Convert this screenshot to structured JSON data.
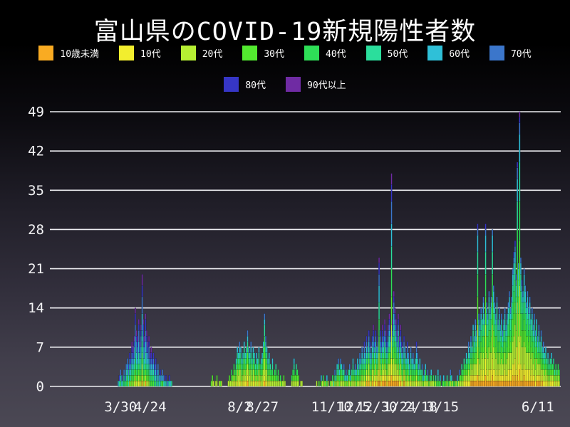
{
  "page": {
    "title": "富山県のCOVID-19新規陽性者数"
  },
  "chart_data": {
    "type": "bar",
    "stacked": true,
    "title": "富山県のCOVID-19新規陽性者数",
    "xlabel": "",
    "ylabel": "",
    "ylim": [
      0,
      49
    ],
    "y_ticks": [
      0,
      7,
      14,
      21,
      28,
      35,
      42,
      49
    ],
    "grid": "horizontal-white",
    "legend_position": "top, two rows",
    "x_axis_note": "categorical daily bars (one thin bar per reporting day), labels overlap",
    "x_ticks": [
      {
        "label": "3/30",
        "slot": 53
      },
      {
        "label": "4/24",
        "slot": 79
      },
      {
        "label": "8/2",
        "slot": 158
      },
      {
        "label": "8/27",
        "slot": 178
      },
      {
        "label": "11/10",
        "slot": 239
      },
      {
        "label": "12/5",
        "slot": 259
      },
      {
        "label": "12/30",
        "slot": 279
      },
      {
        "label": "1/24",
        "slot": 299
      },
      {
        "label": "2/18",
        "slot": 318
      },
      {
        "label": "3/15",
        "slot": 337
      },
      {
        "label": "6/11",
        "slot": 421
      }
    ],
    "age_groups": [
      {
        "name": "10歳未満",
        "color": "#F9AB22"
      },
      {
        "name": "10代",
        "color": "#F2EE2E"
      },
      {
        "name": "20代",
        "color": "#B6EF33"
      },
      {
        "name": "30代",
        "color": "#52E92F"
      },
      {
        "name": "40代",
        "color": "#2EDF57"
      },
      {
        "name": "50代",
        "color": "#2BDE9C"
      },
      {
        "name": "60代",
        "color": "#2FC0D8"
      },
      {
        "name": "70代",
        "color": "#3B76CB"
      },
      {
        "name": "80代",
        "color": "#3636C6"
      },
      {
        "name": "90代以上",
        "color": "#6F2BA3"
      }
    ],
    "eras": [
      {
        "until_slot": 110,
        "weights": [
          3,
          3,
          9,
          10,
          11,
          13,
          15,
          16,
          12,
          8
        ]
      },
      {
        "until_slot": 220,
        "weights": [
          5,
          9,
          24,
          18,
          14,
          11,
          9,
          6,
          3,
          1
        ]
      },
      {
        "until_slot": 352,
        "weights": [
          5,
          8,
          15,
          13,
          13,
          12,
          12,
          10,
          7,
          5
        ]
      },
      {
        "until_slot": 441,
        "weights": [
          6,
          11,
          21,
          17,
          15,
          13,
          9,
          5,
          2,
          1
        ]
      }
    ],
    "n_slots": 441,
    "bars": [
      [
        51,
        1
      ],
      [
        52,
        2
      ],
      [
        53,
        3
      ],
      [
        54,
        2
      ],
      [
        55,
        1
      ],
      [
        56,
        3
      ],
      [
        57,
        2
      ],
      [
        58,
        4
      ],
      [
        59,
        5
      ],
      [
        60,
        4
      ],
      [
        61,
        6
      ],
      [
        62,
        5
      ],
      [
        63,
        8
      ],
      [
        64,
        7
      ],
      [
        65,
        9
      ],
      [
        66,
        14
      ],
      [
        67,
        10
      ],
      [
        68,
        9
      ],
      [
        69,
        12
      ],
      [
        70,
        8
      ],
      [
        71,
        11
      ],
      [
        72,
        20
      ],
      [
        73,
        12
      ],
      [
        74,
        9
      ],
      [
        75,
        13
      ],
      [
        76,
        10
      ],
      [
        77,
        8
      ],
      [
        78,
        9
      ],
      [
        79,
        6
      ],
      [
        80,
        7
      ],
      [
        81,
        5
      ],
      [
        82,
        6
      ],
      [
        83,
        4
      ],
      [
        84,
        5
      ],
      [
        85,
        3
      ],
      [
        86,
        4
      ],
      [
        87,
        2
      ],
      [
        88,
        3
      ],
      [
        89,
        2
      ],
      [
        90,
        3
      ],
      [
        91,
        2
      ],
      [
        92,
        1
      ],
      [
        93,
        2
      ],
      [
        94,
        1
      ],
      [
        95,
        1
      ],
      [
        96,
        2
      ],
      [
        97,
        1
      ],
      [
        98,
        1
      ],
      [
        133,
        1
      ],
      [
        134,
        2
      ],
      [
        135,
        1
      ],
      [
        137,
        1
      ],
      [
        138,
        2
      ],
      [
        140,
        1
      ],
      [
        141,
        1
      ],
      [
        142,
        1
      ],
      [
        148,
        1
      ],
      [
        149,
        2
      ],
      [
        150,
        1
      ],
      [
        151,
        3
      ],
      [
        152,
        2
      ],
      [
        153,
        4
      ],
      [
        154,
        3
      ],
      [
        155,
        5
      ],
      [
        156,
        7
      ],
      [
        157,
        6
      ],
      [
        158,
        8
      ],
      [
        159,
        7
      ],
      [
        160,
        5
      ],
      [
        161,
        6
      ],
      [
        162,
        8
      ],
      [
        163,
        6
      ],
      [
        164,
        7
      ],
      [
        165,
        10
      ],
      [
        166,
        7
      ],
      [
        167,
        6
      ],
      [
        168,
        8
      ],
      [
        169,
        5
      ],
      [
        170,
        7
      ],
      [
        171,
        6
      ],
      [
        172,
        4
      ],
      [
        173,
        6
      ],
      [
        174,
        5
      ],
      [
        175,
        7
      ],
      [
        176,
        4
      ],
      [
        177,
        5
      ],
      [
        178,
        6
      ],
      [
        179,
        8
      ],
      [
        180,
        13
      ],
      [
        181,
        9
      ],
      [
        182,
        7
      ],
      [
        183,
        5
      ],
      [
        184,
        6
      ],
      [
        185,
        4
      ],
      [
        186,
        3
      ],
      [
        187,
        5
      ],
      [
        188,
        2
      ],
      [
        189,
        3
      ],
      [
        190,
        4
      ],
      [
        191,
        2
      ],
      [
        192,
        3
      ],
      [
        193,
        1
      ],
      [
        194,
        2
      ],
      [
        195,
        1
      ],
      [
        196,
        1
      ],
      [
        197,
        2
      ],
      [
        198,
        1
      ],
      [
        204,
        2
      ],
      [
        205,
        3
      ],
      [
        206,
        5
      ],
      [
        207,
        2
      ],
      [
        208,
        4
      ],
      [
        209,
        3
      ],
      [
        210,
        2
      ],
      [
        212,
        1
      ],
      [
        213,
        1
      ],
      [
        226,
        1
      ],
      [
        228,
        1
      ],
      [
        230,
        2
      ],
      [
        231,
        1
      ],
      [
        232,
        2
      ],
      [
        233,
        1
      ],
      [
        234,
        1
      ],
      [
        235,
        2
      ],
      [
        236,
        1
      ],
      [
        238,
        1
      ],
      [
        239,
        1
      ],
      [
        240,
        2
      ],
      [
        241,
        1
      ],
      [
        242,
        3
      ],
      [
        243,
        2
      ],
      [
        244,
        4
      ],
      [
        245,
        5
      ],
      [
        246,
        3
      ],
      [
        247,
        5
      ],
      [
        248,
        4
      ],
      [
        249,
        3
      ],
      [
        250,
        4
      ],
      [
        251,
        2
      ],
      [
        252,
        3
      ],
      [
        253,
        2
      ],
      [
        254,
        3
      ],
      [
        255,
        4
      ],
      [
        256,
        2
      ],
      [
        257,
        3
      ],
      [
        258,
        5
      ],
      [
        259,
        3
      ],
      [
        260,
        4
      ],
      [
        261,
        3
      ],
      [
        262,
        5
      ],
      [
        263,
        4
      ],
      [
        264,
        6
      ],
      [
        265,
        5
      ],
      [
        266,
        7
      ],
      [
        267,
        5
      ],
      [
        268,
        8
      ],
      [
        269,
        6
      ],
      [
        270,
        9
      ],
      [
        271,
        7
      ],
      [
        272,
        10
      ],
      [
        273,
        8
      ],
      [
        274,
        6
      ],
      [
        275,
        9
      ],
      [
        276,
        11
      ],
      [
        277,
        8
      ],
      [
        278,
        10
      ],
      [
        279,
        7
      ],
      [
        280,
        9
      ],
      [
        281,
        23
      ],
      [
        282,
        10
      ],
      [
        283,
        8
      ],
      [
        284,
        11
      ],
      [
        285,
        9
      ],
      [
        286,
        12
      ],
      [
        287,
        10
      ],
      [
        288,
        8
      ],
      [
        289,
        11
      ],
      [
        290,
        13
      ],
      [
        291,
        10
      ],
      [
        292,
        38
      ],
      [
        293,
        12
      ],
      [
        294,
        17
      ],
      [
        295,
        14
      ],
      [
        296,
        12
      ],
      [
        297,
        10
      ],
      [
        298,
        13
      ],
      [
        299,
        9
      ],
      [
        300,
        11
      ],
      [
        301,
        8
      ],
      [
        302,
        6
      ],
      [
        303,
        9
      ],
      [
        304,
        7
      ],
      [
        305,
        5
      ],
      [
        306,
        8
      ],
      [
        307,
        6
      ],
      [
        308,
        4
      ],
      [
        309,
        7
      ],
      [
        310,
        5
      ],
      [
        311,
        6
      ],
      [
        312,
        4
      ],
      [
        313,
        5
      ],
      [
        314,
        8
      ],
      [
        315,
        6
      ],
      [
        316,
        4
      ],
      [
        317,
        5
      ],
      [
        318,
        3
      ],
      [
        319,
        4
      ],
      [
        320,
        2
      ],
      [
        321,
        3
      ],
      [
        322,
        4
      ],
      [
        323,
        2
      ],
      [
        324,
        3
      ],
      [
        325,
        1
      ],
      [
        326,
        2
      ],
      [
        327,
        3
      ],
      [
        328,
        1
      ],
      [
        329,
        2
      ],
      [
        330,
        1
      ],
      [
        331,
        2
      ],
      [
        332,
        1
      ],
      [
        333,
        3
      ],
      [
        334,
        1
      ],
      [
        335,
        2
      ],
      [
        337,
        1
      ],
      [
        338,
        2
      ],
      [
        339,
        1
      ],
      [
        340,
        1
      ],
      [
        341,
        2
      ],
      [
        342,
        1
      ],
      [
        343,
        1
      ],
      [
        344,
        3
      ],
      [
        345,
        2
      ],
      [
        346,
        1
      ],
      [
        347,
        1
      ],
      [
        348,
        1
      ],
      [
        349,
        1
      ],
      [
        350,
        2
      ],
      [
        351,
        1
      ],
      [
        352,
        3
      ],
      [
        353,
        2
      ],
      [
        354,
        4
      ],
      [
        355,
        3
      ],
      [
        356,
        5
      ],
      [
        357,
        4
      ],
      [
        358,
        6
      ],
      [
        359,
        5
      ],
      [
        360,
        8
      ],
      [
        361,
        6
      ],
      [
        362,
        9
      ],
      [
        363,
        7
      ],
      [
        364,
        11
      ],
      [
        365,
        9
      ],
      [
        366,
        12
      ],
      [
        367,
        10
      ],
      [
        368,
        29
      ],
      [
        369,
        13
      ],
      [
        370,
        11
      ],
      [
        371,
        14
      ],
      [
        372,
        12
      ],
      [
        373,
        16
      ],
      [
        374,
        13
      ],
      [
        375,
        29
      ],
      [
        376,
        15
      ],
      [
        377,
        13
      ],
      [
        378,
        17
      ],
      [
        379,
        14
      ],
      [
        380,
        16
      ],
      [
        381,
        28
      ],
      [
        382,
        18
      ],
      [
        383,
        15
      ],
      [
        384,
        13
      ],
      [
        385,
        16
      ],
      [
        386,
        12
      ],
      [
        387,
        14
      ],
      [
        388,
        11
      ],
      [
        389,
        13
      ],
      [
        390,
        10
      ],
      [
        391,
        12
      ],
      [
        392,
        14
      ],
      [
        393,
        11
      ],
      [
        394,
        13
      ],
      [
        395,
        15
      ],
      [
        396,
        17
      ],
      [
        397,
        14
      ],
      [
        398,
        16
      ],
      [
        399,
        21
      ],
      [
        400,
        24
      ],
      [
        401,
        26
      ],
      [
        402,
        20
      ],
      [
        403,
        40
      ],
      [
        404,
        22
      ],
      [
        405,
        49
      ],
      [
        406,
        23
      ],
      [
        407,
        19
      ],
      [
        408,
        17
      ],
      [
        409,
        21
      ],
      [
        410,
        18
      ],
      [
        411,
        15
      ],
      [
        412,
        17
      ],
      [
        413,
        14
      ],
      [
        414,
        16
      ],
      [
        415,
        12
      ],
      [
        416,
        14
      ],
      [
        417,
        11
      ],
      [
        418,
        13
      ],
      [
        419,
        10
      ],
      [
        420,
        12
      ],
      [
        421,
        9
      ],
      [
        422,
        11
      ],
      [
        423,
        8
      ],
      [
        424,
        10
      ],
      [
        425,
        7
      ],
      [
        426,
        8
      ],
      [
        427,
        6
      ],
      [
        428,
        7
      ],
      [
        429,
        5
      ],
      [
        430,
        6
      ],
      [
        431,
        4
      ],
      [
        432,
        5
      ],
      [
        433,
        6
      ],
      [
        434,
        4
      ],
      [
        435,
        5
      ],
      [
        436,
        3
      ],
      [
        437,
        4
      ],
      [
        438,
        3
      ],
      [
        439,
        4
      ],
      [
        440,
        3
      ]
    ]
  }
}
